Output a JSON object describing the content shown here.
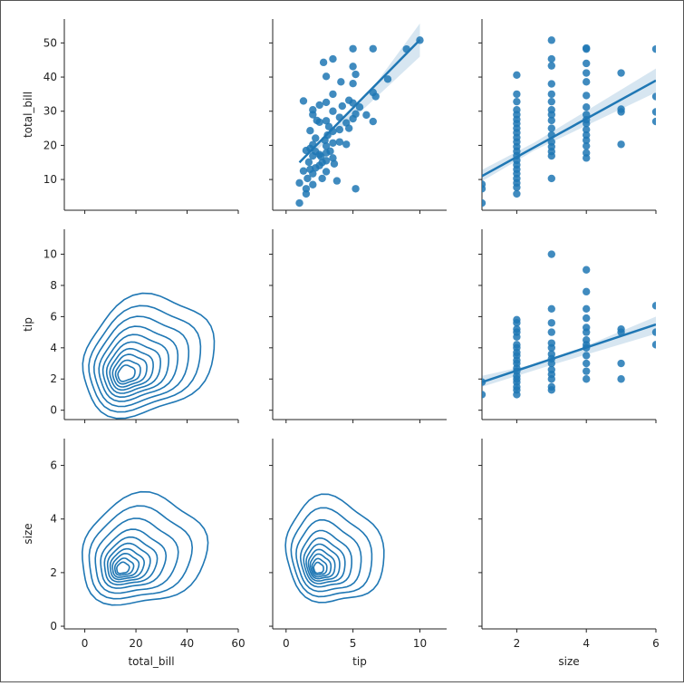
{
  "chart_data": {
    "type": "pairgrid",
    "title": "",
    "variables": [
      "total_bill",
      "tip",
      "size"
    ],
    "colors": {
      "series": "#1f77b4",
      "axis": "#222222",
      "background": "#ffffff"
    },
    "axes_ranges": {
      "total_bill": [
        1,
        57
      ],
      "tip": [
        -0.6,
        11.6
      ],
      "size": [
        -0.1,
        7.0
      ]
    },
    "x_display_ranges": {
      "total_bill": [
        -8,
        60
      ],
      "tip": [
        -1,
        12
      ],
      "size": [
        1,
        6
      ]
    },
    "ticks": {
      "total_bill_y": [
        10,
        20,
        30,
        40,
        50
      ],
      "tip_y": [
        0,
        2,
        4,
        6,
        8,
        10
      ],
      "size_y": [
        0,
        2,
        4,
        6
      ],
      "total_bill_x": [
        0,
        20,
        40,
        60
      ],
      "tip_x": [
        0,
        5,
        10
      ],
      "size_x": [
        2,
        4,
        6
      ]
    },
    "axis_labels": {
      "x": [
        "total_bill",
        "tip",
        "size"
      ],
      "y": [
        "total_bill",
        "tip",
        "size"
      ]
    },
    "panels": [
      {
        "row": "total_bill",
        "col": "tip",
        "kind": "regplot",
        "points": [
          [
            1.0,
            3.1
          ],
          [
            1.5,
            5.8
          ],
          [
            1.5,
            7.3
          ],
          [
            1.0,
            9.0
          ],
          [
            1.6,
            10.3
          ],
          [
            2.0,
            8.5
          ],
          [
            2.0,
            11.7
          ],
          [
            1.8,
            13.0
          ],
          [
            1.3,
            12.5
          ],
          [
            2.2,
            13.4
          ],
          [
            2.5,
            14.1
          ],
          [
            1.7,
            15.1
          ],
          [
            2.0,
            16.9
          ],
          [
            2.5,
            17.3
          ],
          [
            1.5,
            18.5
          ],
          [
            1.8,
            19.1
          ],
          [
            2.2,
            18.2
          ],
          [
            2.6,
            16.8
          ],
          [
            3.0,
            15.5
          ],
          [
            3.0,
            17.8
          ],
          [
            3.3,
            18.3
          ],
          [
            3.5,
            16.3
          ],
          [
            3.0,
            19.8
          ],
          [
            2.0,
            20.2
          ],
          [
            3.5,
            20.7
          ],
          [
            4.0,
            21.0
          ],
          [
            2.2,
            22.1
          ],
          [
            3.1,
            23.0
          ],
          [
            3.5,
            24.1
          ],
          [
            3.2,
            25.5
          ],
          [
            2.5,
            26.8
          ],
          [
            2.0,
            30.4
          ],
          [
            2.0,
            29.0
          ],
          [
            3.0,
            27.2
          ],
          [
            4.0,
            28.2
          ],
          [
            3.5,
            30.0
          ],
          [
            4.2,
            31.5
          ],
          [
            4.5,
            26.6
          ],
          [
            4.7,
            25.0
          ],
          [
            5.0,
            27.8
          ],
          [
            5.2,
            29.2
          ],
          [
            5.5,
            31.2
          ],
          [
            5.0,
            32.4
          ],
          [
            4.7,
            33.2
          ],
          [
            6.0,
            28.9
          ],
          [
            6.5,
            27.0
          ],
          [
            6.7,
            34.3
          ],
          [
            6.5,
            35.5
          ],
          [
            7.6,
            39.4
          ],
          [
            5.0,
            38.1
          ],
          [
            5.2,
            40.8
          ],
          [
            5.0,
            43.1
          ],
          [
            5.0,
            48.3
          ],
          [
            6.5,
            48.3
          ],
          [
            9.0,
            48.2
          ],
          [
            10.0,
            50.8
          ],
          [
            3.5,
            45.3
          ],
          [
            2.8,
            44.3
          ],
          [
            3.0,
            40.2
          ],
          [
            3.5,
            35.0
          ],
          [
            1.3,
            33.0
          ],
          [
            2.5,
            31.8
          ],
          [
            3.0,
            32.6
          ],
          [
            4.1,
            38.6
          ],
          [
            3.6,
            14.6
          ],
          [
            3.0,
            12.3
          ],
          [
            2.7,
            10.3
          ],
          [
            3.8,
            9.6
          ],
          [
            5.2,
            7.3
          ],
          [
            2.9,
            21.5
          ],
          [
            4.0,
            24.6
          ],
          [
            4.5,
            20.3
          ],
          [
            1.8,
            24.3
          ],
          [
            2.3,
            27.3
          ],
          [
            2.7,
            15.0
          ]
        ],
        "fit_line": {
          "x": [
            1.0,
            10.0
          ],
          "y": [
            15.0,
            50.9
          ]
        },
        "ci_band": {
          "x": [
            2.0,
            6.0,
            10.0
          ],
          "lower": [
            17.6,
            31.4,
            46.0
          ],
          "upper": [
            18.9,
            34.3,
            55.7
          ]
        }
      },
      {
        "row": "total_bill",
        "col": "size",
        "kind": "regplot",
        "points": [
          [
            1,
            3.1
          ],
          [
            1,
            7.3
          ],
          [
            1,
            8.6
          ],
          [
            2,
            5.8
          ],
          [
            2,
            7.7
          ],
          [
            2,
            9.0
          ],
          [
            2,
            10.3
          ],
          [
            2,
            11.7
          ],
          [
            2,
            13.0
          ],
          [
            2,
            14.3
          ],
          [
            2,
            15.6
          ],
          [
            2,
            17.0
          ],
          [
            2,
            18.3
          ],
          [
            2,
            19.6
          ],
          [
            2,
            21.0
          ],
          [
            2,
            22.3
          ],
          [
            2,
            23.7
          ],
          [
            2,
            25.0
          ],
          [
            2,
            26.4
          ],
          [
            2,
            27.6
          ],
          [
            2,
            29.0
          ],
          [
            2,
            30.4
          ],
          [
            2,
            32.8
          ],
          [
            2,
            35.0
          ],
          [
            2,
            40.6
          ],
          [
            3,
            10.3
          ],
          [
            3,
            16.9
          ],
          [
            3,
            18.2
          ],
          [
            3,
            19.6
          ],
          [
            3,
            21.0
          ],
          [
            3,
            23.0
          ],
          [
            3,
            25.0
          ],
          [
            3,
            27.3
          ],
          [
            3,
            29.0
          ],
          [
            3,
            30.4
          ],
          [
            3,
            32.8
          ],
          [
            3,
            35.0
          ],
          [
            3,
            38.0
          ],
          [
            3,
            43.3
          ],
          [
            3,
            45.3
          ],
          [
            3,
            50.8
          ],
          [
            4,
            16.3
          ],
          [
            4,
            17.8
          ],
          [
            4,
            19.8
          ],
          [
            4,
            21.5
          ],
          [
            4,
            23.0
          ],
          [
            4,
            24.6
          ],
          [
            4,
            26.4
          ],
          [
            4,
            27.5
          ],
          [
            4,
            29.0
          ],
          [
            4,
            31.2
          ],
          [
            4,
            34.6
          ],
          [
            4,
            38.6
          ],
          [
            4,
            41.2
          ],
          [
            4,
            44.0
          ],
          [
            4,
            48.2
          ],
          [
            4,
            48.5
          ],
          [
            5,
            20.3
          ],
          [
            5,
            29.8
          ],
          [
            5,
            30.6
          ],
          [
            5,
            41.2
          ],
          [
            6,
            27.0
          ],
          [
            6,
            29.8
          ],
          [
            6,
            34.3
          ],
          [
            6,
            48.2
          ]
        ],
        "fit_line": {
          "x": [
            1.0,
            6.0
          ],
          "y": [
            11.0,
            39.0
          ]
        },
        "ci_band": {
          "x": [
            1.0,
            2.5,
            6.0
          ],
          "lower": [
            9.5,
            18.5,
            35.5
          ],
          "upper": [
            12.8,
            20.8,
            42.5
          ]
        }
      },
      {
        "row": "tip",
        "col": "size",
        "kind": "regplot",
        "points": [
          [
            1,
            1.0
          ],
          [
            1,
            1.8
          ],
          [
            2,
            1.0
          ],
          [
            2,
            1.3
          ],
          [
            2,
            1.5
          ],
          [
            2,
            1.8
          ],
          [
            2,
            2.0
          ],
          [
            2,
            2.2
          ],
          [
            2,
            2.5
          ],
          [
            2,
            2.7
          ],
          [
            2,
            3.0
          ],
          [
            2,
            3.2
          ],
          [
            2,
            3.5
          ],
          [
            2,
            3.7
          ],
          [
            2,
            4.0
          ],
          [
            2,
            4.2
          ],
          [
            2,
            4.7
          ],
          [
            2,
            5.0
          ],
          [
            2,
            5.2
          ],
          [
            2,
            5.6
          ],
          [
            2,
            5.8
          ],
          [
            3,
            1.3
          ],
          [
            3,
            1.5
          ],
          [
            3,
            2.0
          ],
          [
            3,
            2.3
          ],
          [
            3,
            2.6
          ],
          [
            3,
            3.0
          ],
          [
            3,
            3.3
          ],
          [
            3,
            3.6
          ],
          [
            3,
            4.0
          ],
          [
            3,
            4.3
          ],
          [
            3,
            5.0
          ],
          [
            3,
            5.6
          ],
          [
            3,
            6.5
          ],
          [
            3,
            10.0
          ],
          [
            4,
            2.0
          ],
          [
            4,
            2.5
          ],
          [
            4,
            3.0
          ],
          [
            4,
            3.5
          ],
          [
            4,
            4.0
          ],
          [
            4,
            4.2
          ],
          [
            4,
            4.5
          ],
          [
            4,
            5.0
          ],
          [
            4,
            5.3
          ],
          [
            4,
            5.9
          ],
          [
            4,
            6.5
          ],
          [
            4,
            7.6
          ],
          [
            4,
            9.0
          ],
          [
            5,
            2.0
          ],
          [
            5,
            3.0
          ],
          [
            5,
            5.0
          ],
          [
            5,
            5.2
          ],
          [
            6,
            4.2
          ],
          [
            6,
            5.0
          ],
          [
            6,
            6.7
          ]
        ],
        "fit_line": {
          "x": [
            1.0,
            6.0
          ],
          "y": [
            1.8,
            5.5
          ]
        },
        "ci_band": {
          "x": [
            1.0,
            3.0,
            6.0
          ],
          "lower": [
            1.5,
            2.9,
            4.9
          ],
          "upper": [
            2.2,
            3.2,
            6.0
          ]
        }
      },
      {
        "row": "tip",
        "col": "total_bill",
        "kind": "kdeplot",
        "x_range": [
          0,
          55
        ],
        "y_range": [
          0,
          8
        ]
      },
      {
        "row": "size",
        "col": "total_bill",
        "kind": "kdeplot",
        "x_range": [
          0,
          55
        ],
        "y_range": [
          0,
          6.5
        ]
      },
      {
        "row": "size",
        "col": "tip",
        "kind": "kdeplot",
        "x_range": [
          0,
          8
        ],
        "y_range": [
          0,
          6.5
        ]
      }
    ]
  }
}
